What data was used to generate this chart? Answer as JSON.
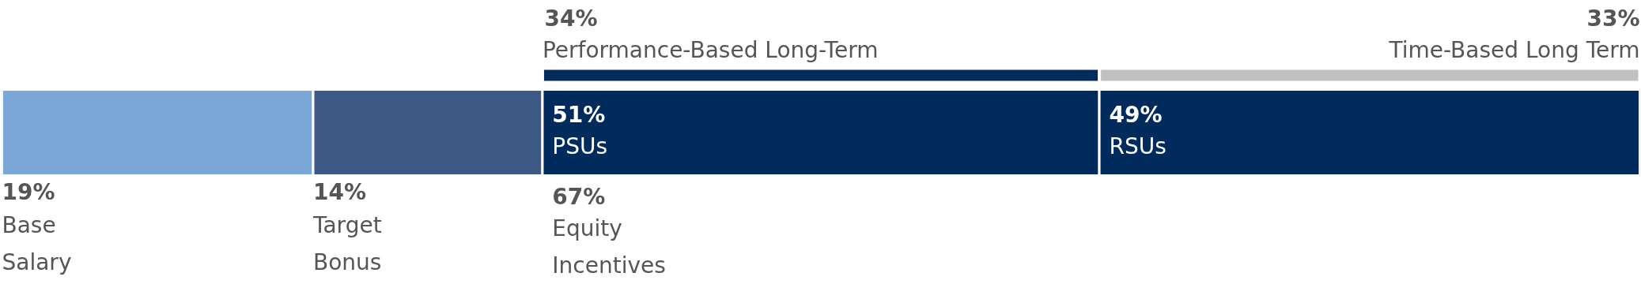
{
  "chart_data": {
    "type": "bar",
    "orientation": "horizontal",
    "stacked": true,
    "categories": [
      null
    ],
    "xlim": [
      0,
      100
    ],
    "tick_labels": false,
    "grid": false,
    "series": [
      {
        "name": "Base Salary",
        "color": "#7ba7d8",
        "values": [
          19
        ],
        "value_labels": [
          "19%"
        ]
      },
      {
        "name": "Target Bonus",
        "color": "#3d5a87",
        "values": [
          14
        ],
        "value_labels": [
          "14%"
        ]
      },
      {
        "name": "PSUs",
        "color": "#002b5c",
        "values": [
          34
        ]
      },
      {
        "name": "RSUs",
        "color": "#002b5c",
        "values": [
          33
        ]
      }
    ],
    "annotations": [
      "34%",
      "Performance-Based Long-Term",
      "33%",
      "Time-Based Long Term",
      "51%",
      "49%",
      "67%",
      "Equity Incentives"
    ]
  }
}
